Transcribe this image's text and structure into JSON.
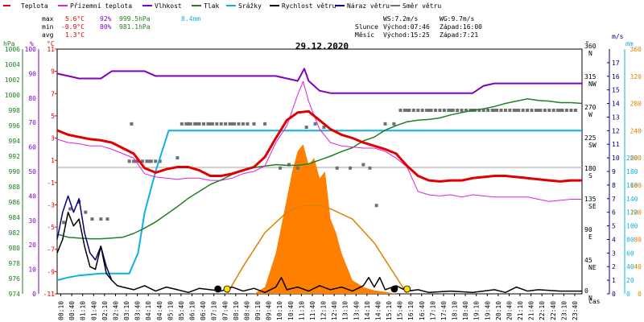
{
  "legend": {
    "items": [
      {
        "label": "Teplota",
        "color": "#e00000"
      },
      {
        "label": "Přízemní teplota",
        "color": "#e020e0"
      },
      {
        "label": "Vlhkost",
        "color": "#8000c0"
      },
      {
        "label": "Tlak",
        "color": "#208020"
      },
      {
        "label": "Srážky",
        "color": "#10b0e0"
      },
      {
        "label": "Rychlost větru",
        "color": "#000000"
      },
      {
        "label": "Náraz větru",
        "color": "#000080"
      },
      {
        "label": "Směr větru",
        "color": "#707070"
      }
    ]
  },
  "stats": {
    "max_label": "max",
    "max_temp": "5.6°C",
    "max_hum": "92%",
    "max_press": "999.5hPa",
    "max_rain": "8.4mm",
    "min_label": "min",
    "min_temp": "-0.9°C",
    "min_hum": "80%",
    "min_press": "981.1hPa",
    "avg_label": "avg",
    "avg_temp": "1.3°C"
  },
  "wind_stats": {
    "ws": "WS:7.2m/s",
    "wg": "WG:9.7m/s"
  },
  "sun": {
    "label": "Slunce",
    "rise": "Východ:07:46",
    "set": "Západ:16:00"
  },
  "moon": {
    "label": "Měsíc",
    "rise": "Východ:15:25",
    "set": "Západ:7:21"
  },
  "date": "29.12.2020",
  "axis_units": {
    "hpa": "hPa",
    "pct": "%",
    "degc": "°C",
    "deg": "°",
    "ms": "m/s",
    "mm": "mm",
    "time": "čas"
  },
  "chart_data": {
    "type": "line",
    "date": "29.12.2020",
    "time_ticks": [
      "00:10",
      "00:40",
      "01:10",
      "01:40",
      "02:10",
      "02:40",
      "03:10",
      "03:40",
      "04:10",
      "04:40",
      "05:10",
      "05:40",
      "06:10",
      "06:40",
      "07:10",
      "07:40",
      "08:10",
      "08:40",
      "09:10",
      "09:40",
      "10:10",
      "10:40",
      "11:10",
      "11:40",
      "12:10",
      "12:40",
      "13:10",
      "13:40",
      "14:10",
      "14:40",
      "15:10",
      "15:40",
      "16:10",
      "16:40",
      "17:10",
      "17:40",
      "18:10",
      "18:40",
      "19:10",
      "19:40",
      "20:10",
      "20:40",
      "21:10",
      "21:40",
      "22:10",
      "22:40",
      "23:10",
      "23:40"
    ],
    "axes": {
      "pressure_hpa": {
        "ticks": [
          974,
          976,
          978,
          980,
          982,
          984,
          986,
          988,
          990,
          992,
          994,
          996,
          998,
          1000,
          1002,
          1004,
          1006
        ],
        "range": [
          974,
          1006
        ]
      },
      "humidity_pct": {
        "ticks": [
          0,
          10,
          20,
          30,
          40,
          50,
          60,
          70,
          80,
          90,
          100
        ],
        "range": [
          0,
          100
        ]
      },
      "temperature_c": {
        "ticks": [
          -11,
          -9,
          -7,
          -5,
          -3,
          -1,
          1,
          3,
          5,
          7,
          9,
          11
        ],
        "range": [
          -11,
          11
        ]
      },
      "wind_direction_deg": {
        "ticks": [
          0,
          45,
          90,
          135,
          180,
          225,
          270,
          315,
          360
        ],
        "labels": [
          "N",
          "NE",
          "E",
          "SE",
          "S",
          "SW",
          "W",
          "NW",
          "N"
        ],
        "range": [
          0,
          360
        ]
      },
      "wind_speed_ms": {
        "ticks": [
          0,
          1,
          2,
          3,
          4,
          5,
          6,
          7,
          8,
          9,
          10,
          11,
          12,
          13,
          14,
          15,
          16,
          17
        ],
        "range": [
          0,
          18
        ]
      },
      "rain_mm": {
        "ticks": [
          0,
          20,
          40,
          60,
          80,
          100,
          120,
          140,
          160,
          180,
          200,
          220,
          240,
          260,
          280,
          300,
          320,
          340,
          360
        ],
        "range": [
          0,
          360
        ]
      }
    },
    "series": [
      {
        "name": "Teplota",
        "axis": "temperature_c",
        "color": "#e00000",
        "x": [
          0,
          0.5,
          1,
          1.5,
          2,
          2.5,
          3,
          3.5,
          4,
          4.5,
          5,
          5.5,
          6,
          6.5,
          7,
          7.5,
          8,
          8.5,
          9,
          9.5,
          10,
          10.5,
          11,
          11.5,
          12,
          12.5,
          13,
          13.5,
          14,
          14.5,
          15,
          15.5,
          16,
          16.5,
          17,
          17.5,
          18,
          18.5,
          19,
          19.5,
          20,
          20.5,
          21,
          21.5,
          22,
          22.5,
          23,
          23.5,
          24
        ],
        "y": [
          3.7,
          3.3,
          3.1,
          2.9,
          2.8,
          2.6,
          2.1,
          1.6,
          0.3,
          -0.1,
          0.2,
          0.4,
          0.4,
          0.1,
          -0.4,
          -0.4,
          -0.2,
          0.1,
          0.4,
          1.3,
          3.0,
          4.6,
          5.3,
          5.4,
          4.6,
          3.8,
          3.3,
          3.0,
          2.6,
          2.3,
          2.0,
          1.6,
          0.5,
          -0.4,
          -0.8,
          -0.9,
          -0.8,
          -0.8,
          -0.6,
          -0.5,
          -0.4,
          -0.4,
          -0.5,
          -0.6,
          -0.7,
          -0.8,
          -0.9,
          -0.8,
          -0.8
        ]
      },
      {
        "name": "Přízemní teplota",
        "axis": "temperature_c",
        "color": "#e020e0",
        "x": [
          0,
          0.5,
          1,
          1.5,
          2,
          2.5,
          3,
          3.5,
          4,
          4.5,
          5,
          5.5,
          6,
          6.5,
          7,
          7.5,
          8,
          8.5,
          9,
          9.5,
          10,
          10.5,
          11,
          11.25,
          11.5,
          12,
          12.5,
          13,
          13.5,
          14,
          14.5,
          15,
          15.5,
          16,
          16.5,
          17,
          17.5,
          18,
          18.5,
          19,
          19.5,
          20,
          20.5,
          21,
          21.5,
          22,
          22.5,
          23,
          23.5,
          24
        ],
        "y": [
          2.9,
          2.6,
          2.5,
          2.3,
          2.3,
          2.0,
          1.6,
          1.2,
          -0.2,
          -0.5,
          -0.6,
          -0.7,
          -0.6,
          -0.6,
          -0.8,
          -0.8,
          -0.6,
          -0.2,
          0.0,
          0.5,
          2.6,
          4.1,
          6.9,
          8.1,
          6.3,
          3.8,
          2.6,
          2.3,
          2.2,
          2.1,
          2.1,
          1.8,
          1.2,
          0.4,
          -1.8,
          -2.1,
          -2.2,
          -2.1,
          -2.3,
          -2.1,
          -2.2,
          -2.3,
          -2.3,
          -2.3,
          -2.3,
          -2.5,
          -2.7,
          -2.6,
          -2.5,
          -2.5
        ]
      },
      {
        "name": "Vlhkost",
        "axis": "humidity_pct",
        "color": "#8000c0",
        "x": [
          0,
          0.5,
          1,
          2,
          2.5,
          4,
          4.5,
          5,
          6,
          7,
          8,
          9,
          10,
          10.5,
          11,
          11.3,
          11.5,
          12,
          12.5,
          13,
          14,
          15,
          16,
          17,
          18,
          19,
          19.5,
          20,
          21,
          22,
          23,
          24
        ],
        "y": [
          90,
          89,
          88,
          88,
          91,
          91,
          89,
          89,
          89,
          89,
          89,
          89,
          89,
          88,
          87,
          92,
          87,
          83,
          82,
          82,
          82,
          82,
          82,
          82,
          82,
          82,
          85,
          86,
          86,
          86,
          86,
          86
        ]
      },
      {
        "name": "Tlak",
        "axis": "pressure_hpa",
        "color": "#208020",
        "x": [
          0,
          0.5,
          1,
          1.5,
          2,
          2.5,
          3,
          3.5,
          4,
          4.5,
          5,
          5.5,
          6,
          6.5,
          7,
          7.5,
          8,
          8.5,
          9,
          9.5,
          10,
          10.5,
          11,
          11.5,
          12,
          12.5,
          13,
          13.5,
          14,
          14.5,
          15,
          15.5,
          16,
          16.5,
          17,
          17.5,
          18,
          18.5,
          19,
          19.5,
          20,
          20.5,
          21,
          21.5,
          22,
          22.5,
          23,
          23.5,
          24
        ],
        "y": [
          981.8,
          981.4,
          981.3,
          981.2,
          981.2,
          981.3,
          981.4,
          981.9,
          982.6,
          983.4,
          984.4,
          985.4,
          986.5,
          987.4,
          988.3,
          988.9,
          989.6,
          990.1,
          990.5,
          990.7,
          990.9,
          990.8,
          990.8,
          991.0,
          991.5,
          992.0,
          992.6,
          993.1,
          994.0,
          994.5,
          995.4,
          996.0,
          996.5,
          996.7,
          996.8,
          997.0,
          997.4,
          997.7,
          998.0,
          998.2,
          998.5,
          998.9,
          999.2,
          999.5,
          999.3,
          999.2,
          999.0,
          999.0,
          998.9
        ]
      },
      {
        "name": "Srážky",
        "axis": "rain_mm",
        "color": "#10b0e0",
        "x": [
          0,
          0.5,
          1,
          2,
          2.5,
          3,
          3.3,
          3.7,
          4,
          4.5,
          5,
          5.1,
          6,
          8,
          10,
          12,
          14,
          16,
          18,
          20,
          22,
          24
        ],
        "y": [
          20,
          24,
          27,
          30,
          30,
          30,
          30,
          60,
          120,
          180,
          230,
          240,
          240,
          240,
          240,
          240,
          240,
          240,
          240,
          240,
          240,
          240
        ]
      },
      {
        "name": "Rychlost větru",
        "axis": "wind_speed_ms",
        "color": "#000000",
        "x": [
          0,
          0.25,
          0.5,
          0.75,
          1,
          1.25,
          1.5,
          1.75,
          2,
          2.25,
          2.5,
          2.75,
          3,
          3.5,
          4,
          4.5,
          5,
          5.5,
          6,
          6.5,
          7,
          7.5,
          8,
          8.5,
          9,
          9.5,
          10,
          10.25,
          10.5,
          11,
          11.5,
          12,
          12.5,
          13,
          13.5,
          14,
          14.25,
          14.5,
          14.75,
          15,
          15.5,
          16,
          16.5,
          17,
          18,
          19,
          20,
          20.5,
          21,
          21.5,
          22,
          23,
          24
        ],
        "y": [
          3.0,
          4.0,
          6.0,
          5.0,
          5.5,
          3.5,
          2.0,
          1.8,
          3.5,
          1.5,
          1.0,
          0.6,
          0.5,
          0.3,
          0.6,
          0.2,
          0.5,
          0.3,
          0.1,
          0.4,
          0.3,
          0.2,
          0.5,
          0.2,
          0.4,
          0.1,
          0.5,
          1.2,
          0.3,
          0.5,
          0.2,
          0.6,
          0.3,
          0.5,
          0.2,
          0.6,
          1.2,
          0.5,
          1.2,
          0.3,
          0.6,
          0.2,
          0.3,
          0.1,
          0.2,
          0.1,
          0.3,
          0.1,
          0.5,
          0.2,
          0.3,
          0.2,
          0.2
        ]
      },
      {
        "name": "Náraz větru",
        "axis": "wind_speed_ms",
        "color": "#000080",
        "x": [
          0,
          0.25,
          0.5,
          0.75,
          1,
          1.25,
          1.5,
          1.75,
          2,
          2.25,
          2.5
        ],
        "y": [
          4.0,
          6.0,
          7.2,
          6.0,
          7.0,
          4.5,
          3.0,
          2.5,
          3.5,
          2.0,
          1.0
        ]
      },
      {
        "name": "Solar",
        "axis": "rain_mm",
        "color": "#ff8000",
        "x": [
          9.0,
          9.5,
          10.0,
          10.5,
          10.75,
          11.0,
          11.25,
          11.5,
          11.75,
          12.0,
          12.25,
          12.5,
          12.75,
          13.0,
          13.25,
          13.5,
          13.75,
          14.0,
          14.5,
          15.0,
          15.5
        ],
        "y": [
          0,
          10,
          60,
          140,
          180,
          210,
          220,
          190,
          200,
          170,
          180,
          110,
          90,
          60,
          40,
          20,
          15,
          10,
          5,
          3,
          0
        ]
      },
      {
        "name": "Sun elevation",
        "axis": "rain_mm",
        "color": "#e08000",
        "x": [
          7.77,
          8.5,
          9.5,
          10.5,
          11.25,
          11.9,
          12.5,
          13.5,
          14.5,
          15.5,
          16.0
        ],
        "y": [
          0,
          40,
          90,
          120,
          130,
          130,
          125,
          110,
          75,
          25,
          0
        ]
      }
    ],
    "wind_direction": {
      "x": [
        0.3,
        0.6,
        1.0,
        1.3,
        1.6,
        2.0,
        2.3,
        3.4,
        3.6,
        4.2,
        4.7,
        5.5,
        6.0,
        6.4,
        7.0,
        8.0,
        9.0,
        9.5,
        10.2,
        10.6,
        11.0,
        11.4,
        11.8,
        12.2,
        12.8,
        13.4,
        14.0,
        14.3,
        14.6,
        15.0,
        15.4,
        15.7,
        16.0,
        17.0,
        18.0,
        19.0,
        20.0,
        21.0,
        22.0,
        23.0,
        23.7
      ],
      "y": [
        105,
        125,
        135,
        120,
        110,
        110,
        110,
        250,
        195,
        195,
        195,
        200,
        250,
        250,
        250,
        250,
        250,
        250,
        185,
        190,
        185,
        245,
        250,
        245,
        185,
        185,
        190,
        185,
        130,
        250,
        250,
        270,
        270,
        270,
        270,
        270,
        270,
        270,
        270,
        270,
        270
      ]
    },
    "markers": [
      {
        "type": "moonset",
        "x": 7.35
      },
      {
        "type": "sunrise",
        "x": 7.77
      },
      {
        "type": "moonrise",
        "x": 15.42
      },
      {
        "type": "sunset",
        "x": 16.0
      }
    ]
  }
}
